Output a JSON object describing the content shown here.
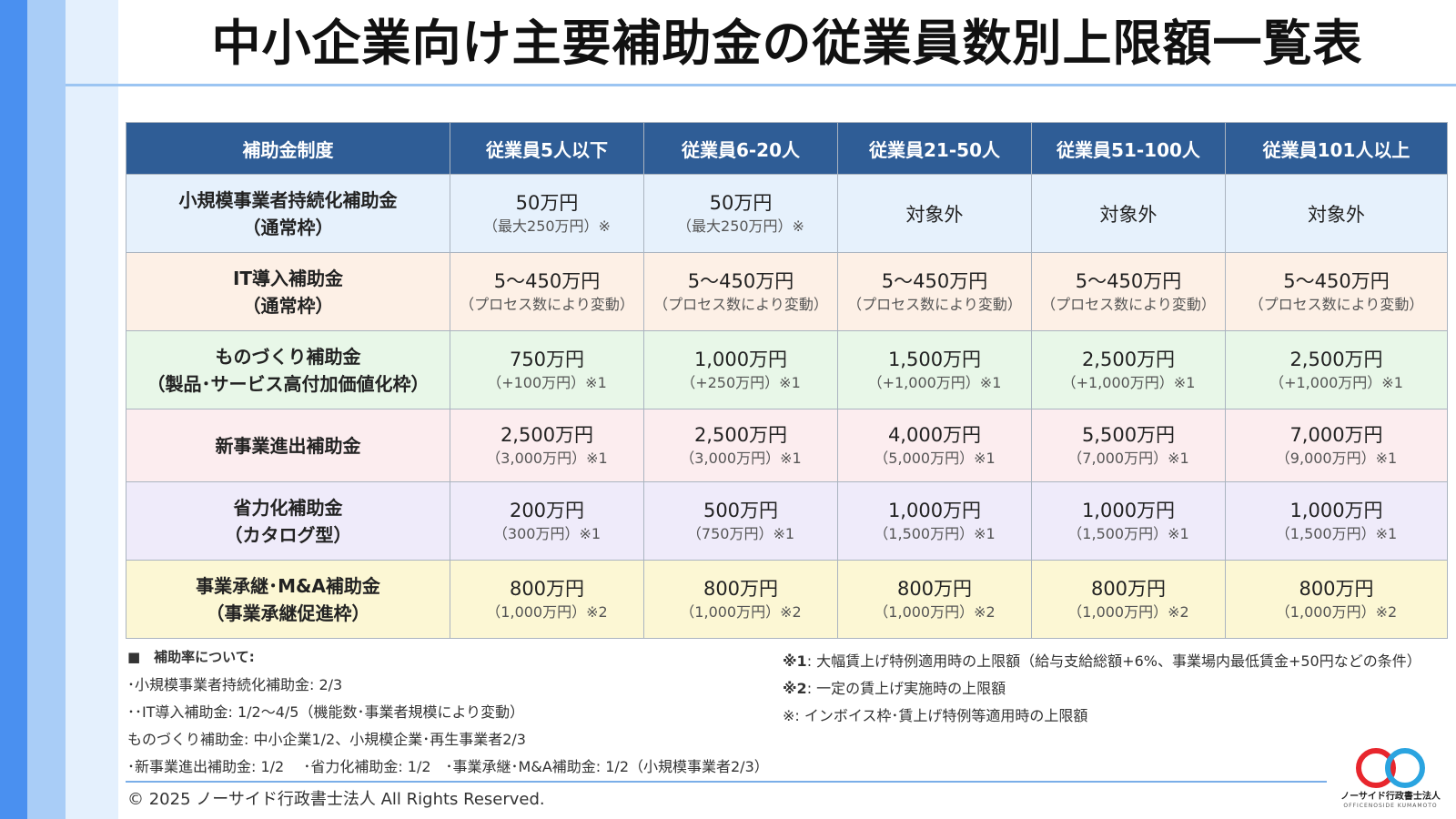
{
  "title": "中小企業向け主要補助金の従業員数別上限額一覧表",
  "table": {
    "headers": [
      "補助金制度",
      "従業員5人以下",
      "従業員6-20人",
      "従業員21-50人",
      "従業員51-100人",
      "従業員101人以上"
    ],
    "rows": [
      {
        "name1": "小規模事業者持続化補助金",
        "name2": "（通常枠）",
        "cells": [
          {
            "main": "50万円",
            "sub": "（最大250万円）※"
          },
          {
            "main": "50万円",
            "sub": "（最大250万円）※"
          },
          {
            "main": "対象外",
            "sub": ""
          },
          {
            "main": "対象外",
            "sub": ""
          },
          {
            "main": "対象外",
            "sub": ""
          }
        ]
      },
      {
        "name1": "IT導入補助金",
        "name2": "（通常枠）",
        "cells": [
          {
            "main": "5～450万円",
            "sub": "（プロセス数により変動）"
          },
          {
            "main": "5～450万円",
            "sub": "（プロセス数により変動）"
          },
          {
            "main": "5～450万円",
            "sub": "（プロセス数により変動）"
          },
          {
            "main": "5～450万円",
            "sub": "（プロセス数により変動）"
          },
          {
            "main": "5～450万円",
            "sub": "（プロセス数により変動）"
          }
        ]
      },
      {
        "name1": "ものづくり補助金",
        "name2": "（製品･サービス高付加価値化枠）",
        "cells": [
          {
            "main": "750万円",
            "sub": "（+100万円）※1"
          },
          {
            "main": "1,000万円",
            "sub": "（+250万円）※1"
          },
          {
            "main": "1,500万円",
            "sub": "（+1,000万円）※1"
          },
          {
            "main": "2,500万円",
            "sub": "（+1,000万円）※1"
          },
          {
            "main": "2,500万円",
            "sub": "（+1,000万円）※1"
          }
        ]
      },
      {
        "name1": "新事業進出補助金",
        "name2": "",
        "cells": [
          {
            "main": "2,500万円",
            "sub": "（3,000万円）※1"
          },
          {
            "main": "2,500万円",
            "sub": "（3,000万円）※1"
          },
          {
            "main": "4,000万円",
            "sub": "（5,000万円）※1"
          },
          {
            "main": "5,500万円",
            "sub": "（7,000万円）※1"
          },
          {
            "main": "7,000万円",
            "sub": "（9,000万円）※1"
          }
        ]
      },
      {
        "name1": "省力化補助金",
        "name2": "（カタログ型）",
        "cells": [
          {
            "main": "200万円",
            "sub": "（300万円）※1"
          },
          {
            "main": "500万円",
            "sub": "（750万円）※1"
          },
          {
            "main": "1,000万円",
            "sub": "（1,500万円）※1"
          },
          {
            "main": "1,000万円",
            "sub": "（1,500万円）※1"
          },
          {
            "main": "1,000万円",
            "sub": "（1,500万円）※1"
          }
        ]
      },
      {
        "name1": "事業承継･M&A補助金",
        "name2": "（事業承継促進枠）",
        "cells": [
          {
            "main": "800万円",
            "sub": "（1,000万円）※2"
          },
          {
            "main": "800万円",
            "sub": "（1,000万円）※2"
          },
          {
            "main": "800万円",
            "sub": "（1,000万円）※2"
          },
          {
            "main": "800万円",
            "sub": "（1,000万円）※2"
          },
          {
            "main": "800万円",
            "sub": "（1,000万円）※2"
          }
        ]
      }
    ]
  },
  "notes_left": {
    "heading": "■　補助率について:",
    "lines": [
      "･小規模事業者持続化補助金: 2/3",
      "･･IT導入補助金: 1/2～4/5（機能数･事業者規模により変動）",
      "ものづくり補助金: 中小企業1/2、小規模企業･再生事業者2/3",
      "･新事業進出補助金: 1/2　 ･省力化補助金: 1/2　･事業承継･M&A補助金: 1/2（小規模事業者2/3）"
    ]
  },
  "notes_right": [
    {
      "mark": "※1",
      "text": ": 大幅賃上げ特例適用時の上限額（給与支給総額+6%、事業場内最低賃金+50円などの条件）"
    },
    {
      "mark": "※2",
      "text": ": 一定の賃上げ実施時の上限額"
    },
    {
      "mark": "※",
      "text": ": インボイス枠･賃上げ特例等適用時の上限額"
    }
  ],
  "footer": {
    "copyright": "© 2025 ノーサイド行政書士法人 All Rights Reserved.",
    "logo_text": "ノーサイド行政書士法人",
    "logo_sub": "OFFICENOSIDE KUMAMOTO"
  },
  "colors": {
    "header_bg": "#2f5d96",
    "logo_red": "#e8262d",
    "logo_blue": "#2aa4e0"
  }
}
